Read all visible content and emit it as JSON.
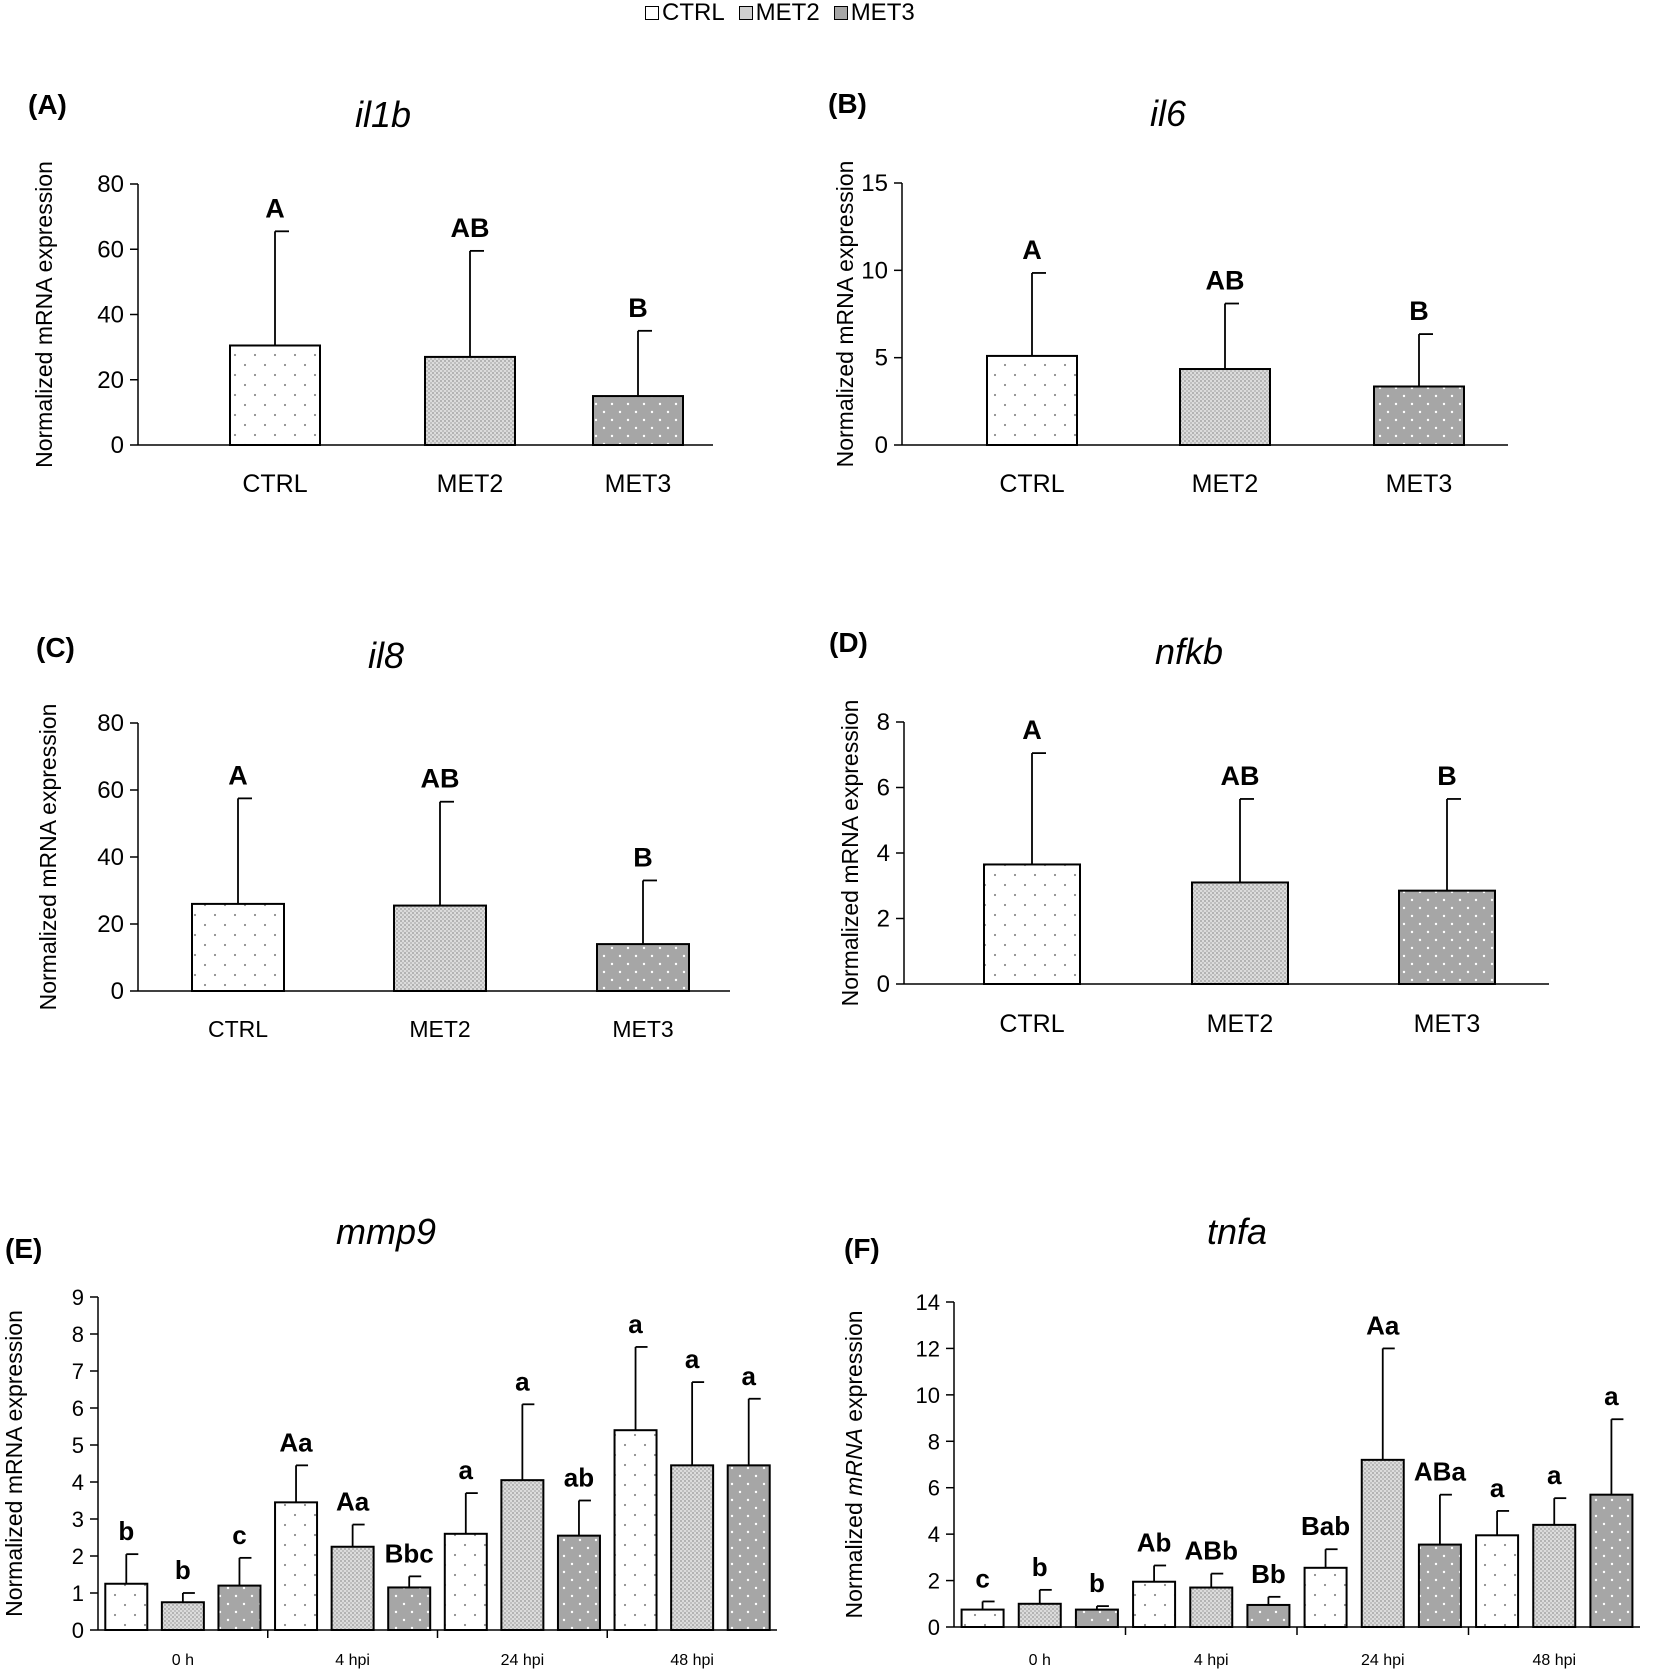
{
  "legend": {
    "items": [
      {
        "label": "CTRL",
        "pattern": "ctrl"
      },
      {
        "label": "MET2",
        "pattern": "met2"
      },
      {
        "label": "MET3",
        "pattern": "met3"
      }
    ]
  },
  "colors": {
    "bar_ctrl": "#ffffff",
    "bar_met2": "#d9d9d9",
    "bar_met3": "#a6a6a6",
    "axis": "#000000"
  },
  "chart_data": [
    {
      "id": "A",
      "type": "bar",
      "panel_label": "(A)",
      "title": "il1b",
      "ylabel": "Normalized mRNA expression",
      "ylim": [
        0,
        80
      ],
      "yticks": [
        0,
        20,
        40,
        60,
        80
      ],
      "ytick_labels": [
        "0",
        "20",
        "40",
        "60",
        "80"
      ],
      "categories": [
        "CTRL",
        "MET2",
        "MET3"
      ],
      "values": [
        30.5,
        27,
        15
      ],
      "errors": [
        35,
        32.5,
        20
      ],
      "patterns": [
        "ctrl",
        "met2",
        "met3"
      ],
      "annotations": [
        "A",
        "AB",
        "B"
      ]
    },
    {
      "id": "B",
      "type": "bar",
      "panel_label": "(B)",
      "title": "il6",
      "ylabel": "Normalized mRNA expression",
      "ylim": [
        0,
        15
      ],
      "yticks": [
        0,
        5,
        10,
        15
      ],
      "ytick_labels": [
        "0",
        "5",
        "10",
        "15"
      ],
      "categories": [
        "CTRL",
        "MET2",
        "MET3"
      ],
      "values": [
        5.1,
        4.35,
        3.35
      ],
      "errors": [
        4.75,
        3.75,
        3.0
      ],
      "patterns": [
        "ctrl",
        "met2",
        "met3"
      ],
      "annotations": [
        "A",
        "AB",
        "B"
      ]
    },
    {
      "id": "C",
      "type": "bar",
      "panel_label": "(C)",
      "title": "il8",
      "ylabel": "Normalized mRNA expression",
      "ylim": [
        0,
        80
      ],
      "yticks": [
        0,
        20,
        40,
        60,
        80
      ],
      "ytick_labels": [
        "0",
        "20",
        "40",
        "60",
        "80"
      ],
      "categories": [
        "CTRL",
        "MET2",
        "MET3"
      ],
      "values": [
        26,
        25.5,
        14
      ],
      "errors": [
        31.5,
        31,
        19
      ],
      "patterns": [
        "ctrl",
        "met2",
        "met3"
      ],
      "annotations": [
        "A",
        "AB",
        "B"
      ]
    },
    {
      "id": "D",
      "type": "bar",
      "panel_label": "(D)",
      "title": "nfkb",
      "ylabel": "Normalized mRNA expression",
      "ylim": [
        0,
        8
      ],
      "yticks": [
        0,
        2,
        4,
        6,
        8
      ],
      "ytick_labels": [
        "0",
        "2",
        "4",
        "6",
        "8"
      ],
      "categories": [
        "CTRL",
        "MET2",
        "MET3"
      ],
      "values": [
        3.65,
        3.1,
        2.85
      ],
      "errors": [
        3.4,
        2.55,
        2.8
      ],
      "patterns": [
        "ctrl",
        "met2",
        "met3"
      ],
      "annotations": [
        "A",
        "AB",
        "B"
      ]
    },
    {
      "id": "E",
      "type": "bar",
      "panel_label": "(E)",
      "title": "mmp9",
      "ylabel": "Normalized mRNA expression",
      "ylim": [
        0,
        9
      ],
      "yticks": [
        0,
        1,
        2,
        3,
        4,
        5,
        6,
        7,
        8,
        9
      ],
      "ytick_labels": [
        "0",
        "1",
        "2",
        "3",
        "4",
        "5",
        "6",
        "7",
        "8",
        "9"
      ],
      "categories": [
        "0 h",
        "4 hpi",
        "24 hpi",
        "48 hpi"
      ],
      "series": [
        {
          "name": "CTRL",
          "pattern": "ctrl",
          "values": [
            1.25,
            3.45,
            2.6,
            5.4
          ],
          "errors": [
            0.8,
            1.0,
            1.1,
            2.25
          ],
          "annotations": [
            "b",
            "Aa",
            "a",
            "a"
          ]
        },
        {
          "name": "MET2",
          "pattern": "met2",
          "values": [
            0.75,
            2.25,
            4.05,
            4.45
          ],
          "errors": [
            0.25,
            0.6,
            2.05,
            2.25
          ],
          "annotations": [
            "b",
            "Aa",
            "a",
            "a"
          ]
        },
        {
          "name": "MET3",
          "pattern": "met3",
          "values": [
            1.2,
            1.15,
            2.55,
            4.45
          ],
          "errors": [
            0.75,
            0.3,
            0.95,
            1.8
          ],
          "annotations": [
            "c",
            "Bbc",
            "ab",
            "a"
          ]
        }
      ]
    },
    {
      "id": "F",
      "type": "bar",
      "panel_label": "(F)",
      "title": "tnfa",
      "ylabel_parts": [
        "Normalized ",
        "mRNA",
        " expression"
      ],
      "ylim": [
        0,
        14
      ],
      "yticks": [
        0,
        2,
        4,
        6,
        8,
        10,
        12,
        14
      ],
      "ytick_labels": [
        "0",
        "2",
        "4",
        "6",
        "8",
        "10",
        "12",
        "14"
      ],
      "categories": [
        "0 h",
        "4 hpi",
        "24 hpi",
        "48 hpi"
      ],
      "series": [
        {
          "name": "CTRL",
          "pattern": "ctrl",
          "values": [
            0.75,
            1.95,
            2.55,
            3.95
          ],
          "errors": [
            0.35,
            0.7,
            0.8,
            1.05
          ],
          "annotations": [
            "c",
            "Ab",
            "Bab",
            "a"
          ]
        },
        {
          "name": "MET2",
          "pattern": "met2",
          "values": [
            1.0,
            1.7,
            7.2,
            4.4
          ],
          "errors": [
            0.6,
            0.6,
            4.8,
            1.15
          ],
          "annotations": [
            "b",
            "ABb",
            "Aa",
            "a"
          ]
        },
        {
          "name": "MET3",
          "pattern": "met3",
          "values": [
            0.75,
            0.95,
            3.55,
            5.7
          ],
          "errors": [
            0.15,
            0.35,
            2.15,
            3.25
          ],
          "annotations": [
            "b",
            "Bb",
            "ABa",
            "a"
          ]
        }
      ]
    }
  ]
}
